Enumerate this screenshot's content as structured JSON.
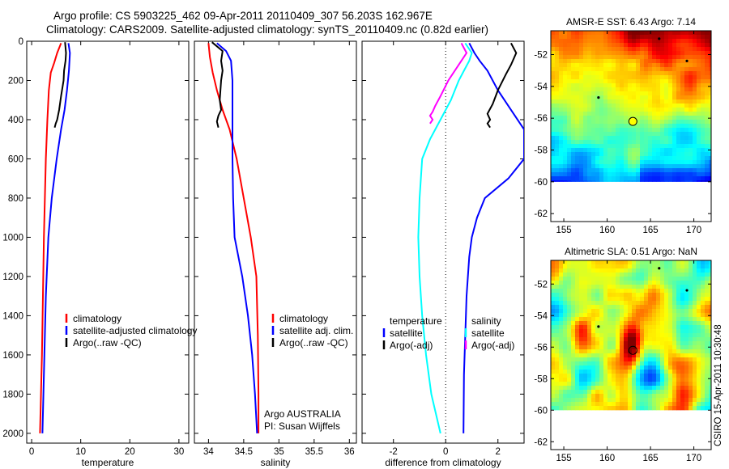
{
  "title_line1": "Argo profile: CS 5903225_462 09-Apr-2011 20110409_307 56.203S 162.967E",
  "title_line2": "Climatology: CARS2009. Satellite-adjusted climatology: synTS_20110409.nc (0.82d earlier)",
  "colors": {
    "climatology": "#ff0000",
    "satellite": "#0000ff",
    "argo": "#000000",
    "sat_diff_s": "#00ffff",
    "argo_diff_s": "#ff00ff"
  },
  "chart_data": [
    {
      "type": "line",
      "xlabel": "temperature",
      "xlim": [
        -1,
        32
      ],
      "ylim": [
        2050,
        0
      ],
      "xticks": [
        "0",
        "10",
        "20",
        "30"
      ],
      "yticks": [
        "0",
        "200",
        "400",
        "600",
        "800",
        "1000",
        "1200",
        "1400",
        "1600",
        "1800",
        "2000"
      ],
      "legend": [
        "climatology",
        "satellite-adjusted climatology",
        "Argo(..raw -QC)"
      ],
      "series": [
        {
          "name": "climatology",
          "points": [
            [
              6.0,
              10
            ],
            [
              5.2,
              60
            ],
            [
              4.6,
              110
            ],
            [
              3.9,
              160
            ],
            [
              3.5,
              250
            ],
            [
              3.2,
              400
            ],
            [
              2.9,
              600
            ],
            [
              2.7,
              800
            ],
            [
              2.5,
              1000
            ],
            [
              2.3,
              1300
            ],
            [
              2.1,
              1600
            ],
            [
              1.9,
              1800
            ],
            [
              1.7,
              2000
            ]
          ]
        },
        {
          "name": "satellite-adjusted climatology",
          "points": [
            [
              7.5,
              10
            ],
            [
              7.8,
              60
            ],
            [
              7.6,
              150
            ],
            [
              7.2,
              250
            ],
            [
              6.7,
              350
            ],
            [
              6.0,
              450
            ],
            [
              5.1,
              600
            ],
            [
              4.1,
              800
            ],
            [
              3.4,
              1000
            ],
            [
              2.9,
              1300
            ],
            [
              2.6,
              1600
            ],
            [
              2.4,
              1800
            ],
            [
              2.2,
              2000
            ]
          ]
        },
        {
          "name": "Argo(..raw -QC)",
          "points": [
            [
              6.8,
              5
            ],
            [
              7.0,
              60
            ],
            [
              6.9,
              100
            ],
            [
              6.6,
              150
            ],
            [
              6.5,
              200
            ],
            [
              6.0,
              280
            ],
            [
              5.6,
              350
            ],
            [
              5.2,
              400
            ],
            [
              4.9,
              420
            ],
            [
              4.7,
              440
            ]
          ]
        }
      ]
    },
    {
      "type": "line",
      "xlabel": "salinity",
      "xlim": [
        33.8,
        36.1
      ],
      "ylim": [
        2050,
        0
      ],
      "xticks": [
        "34",
        "34.5",
        "35",
        "35.5",
        "36"
      ],
      "legend": [
        "climatology",
        "satellite adj. clim.",
        "Argo(..raw -QC)"
      ],
      "annotation": [
        "Argo AUSTRALIA",
        "PI: Susan Wijffels"
      ],
      "series": [
        {
          "name": "climatology",
          "points": [
            [
              34.0,
              10
            ],
            [
              34.02,
              80
            ],
            [
              34.06,
              160
            ],
            [
              34.12,
              250
            ],
            [
              34.2,
              350
            ],
            [
              34.3,
              450
            ],
            [
              34.4,
              600
            ],
            [
              34.5,
              800
            ],
            [
              34.6,
              1000
            ],
            [
              34.68,
              1200
            ],
            [
              34.7,
              1500
            ],
            [
              34.71,
              1800
            ],
            [
              34.71,
              2000
            ]
          ]
        },
        {
          "name": "satellite adj. clim.",
          "points": [
            [
              34.12,
              10
            ],
            [
              34.25,
              50
            ],
            [
              34.32,
              100
            ],
            [
              34.34,
              200
            ],
            [
              34.34,
              400
            ],
            [
              34.34,
              600
            ],
            [
              34.35,
              800
            ],
            [
              34.37,
              1000
            ],
            [
              34.48,
              1200
            ],
            [
              34.56,
              1400
            ],
            [
              34.62,
              1600
            ],
            [
              34.66,
              1800
            ],
            [
              34.69,
              2000
            ]
          ]
        },
        {
          "name": "Argo(..raw -QC)",
          "points": [
            [
              34.05,
              5
            ],
            [
              34.2,
              50
            ],
            [
              34.18,
              100
            ],
            [
              34.2,
              150
            ],
            [
              34.18,
              200
            ],
            [
              34.16,
              300
            ],
            [
              34.18,
              350
            ],
            [
              34.14,
              380
            ],
            [
              34.12,
              410
            ],
            [
              34.14,
              440
            ]
          ]
        }
      ]
    },
    {
      "type": "line",
      "xlabel": "difference from climatology",
      "xlim": [
        -3.2,
        3.0
      ],
      "ylim": [
        2050,
        0
      ],
      "xticks": [
        "-2",
        "0",
        "2"
      ],
      "legend_left_title": "temperature",
      "legend_left": [
        "satellite",
        "Argo(-adj)"
      ],
      "legend_right_title": "salinity",
      "legend_right": [
        "satellite",
        "salinity",
        "Argo(-adj)"
      ],
      "series": [
        {
          "name": "satellite",
          "points": [
            [
              0.9,
              10
            ],
            [
              1.1,
              60
            ],
            [
              1.3,
              100
            ],
            [
              1.6,
              150
            ],
            [
              2.0,
              250
            ],
            [
              2.5,
              350
            ],
            [
              3.0,
              450
            ],
            [
              3.0,
              600
            ],
            [
              2.4,
              700
            ],
            [
              1.5,
              800
            ],
            [
              1.2,
              900
            ],
            [
              1.0,
              1000
            ],
            [
              0.9,
              1100
            ],
            [
              0.8,
              1300
            ],
            [
              0.75,
              1500
            ],
            [
              0.7,
              1700
            ],
            [
              0.68,
              2000
            ]
          ]
        },
        {
          "name": "Argo(-adj)",
          "points": [
            [
              2.5,
              10
            ],
            [
              2.7,
              60
            ],
            [
              2.5,
              120
            ],
            [
              2.3,
              170
            ],
            [
              2.0,
              250
            ],
            [
              1.8,
              320
            ],
            [
              1.6,
              370
            ],
            [
              1.7,
              400
            ],
            [
              1.6,
              420
            ],
            [
              1.7,
              440
            ]
          ]
        },
        {
          "name": "satellite (salinity)",
          "points": [
            [
              0.75,
              10
            ],
            [
              1.0,
              60
            ],
            [
              0.9,
              100
            ],
            [
              0.7,
              150
            ],
            [
              0.5,
              200
            ],
            [
              0.2,
              300
            ],
            [
              -0.2,
              400
            ],
            [
              -0.6,
              500
            ],
            [
              -0.9,
              600
            ],
            [
              -1.0,
              800
            ],
            [
              -1.05,
              1000
            ],
            [
              -1.0,
              1200
            ],
            [
              -0.9,
              1400
            ],
            [
              -0.75,
              1600
            ],
            [
              -0.55,
              1800
            ],
            [
              -0.2,
              2000
            ]
          ]
        },
        {
          "name": "Argo(-adj) (salinity)",
          "points": [
            [
              0.6,
              10
            ],
            [
              0.8,
              60
            ],
            [
              0.6,
              100
            ],
            [
              0.1,
              200
            ],
            [
              -0.2,
              280
            ],
            [
              -0.4,
              330
            ],
            [
              -0.5,
              360
            ],
            [
              -0.6,
              380
            ],
            [
              -0.5,
              400
            ],
            [
              -0.6,
              420
            ]
          ]
        }
      ]
    }
  ],
  "maps": [
    {
      "title": "AMSR-E SST: 6.43  Argo: 7.14",
      "xlim": [
        153.5,
        172
      ],
      "ylim": [
        -62.5,
        -50.5
      ],
      "xticks": [
        "155",
        "160",
        "165",
        "170"
      ],
      "yticks": [
        "-52",
        "-54",
        "-56",
        "-58",
        "-60",
        "-62"
      ],
      "data_bottom": -60,
      "kind": "sst",
      "argo_marker": [
        162.967,
        -56.203
      ]
    },
    {
      "title": "Altimetric SLA: 0.51  Argo: NaN",
      "xlim": [
        153.5,
        172
      ],
      "ylim": [
        -62.5,
        -50.5
      ],
      "xticks": [
        "155",
        "160",
        "165",
        "170"
      ],
      "yticks": [
        "-52",
        "-54",
        "-56",
        "-58",
        "-60",
        "-62"
      ],
      "data_bottom": -60,
      "kind": "sla",
      "argo_marker": [
        162.967,
        -56.203
      ]
    }
  ],
  "side_label": "CSIRO  15-Apr-2011 10:30:48"
}
